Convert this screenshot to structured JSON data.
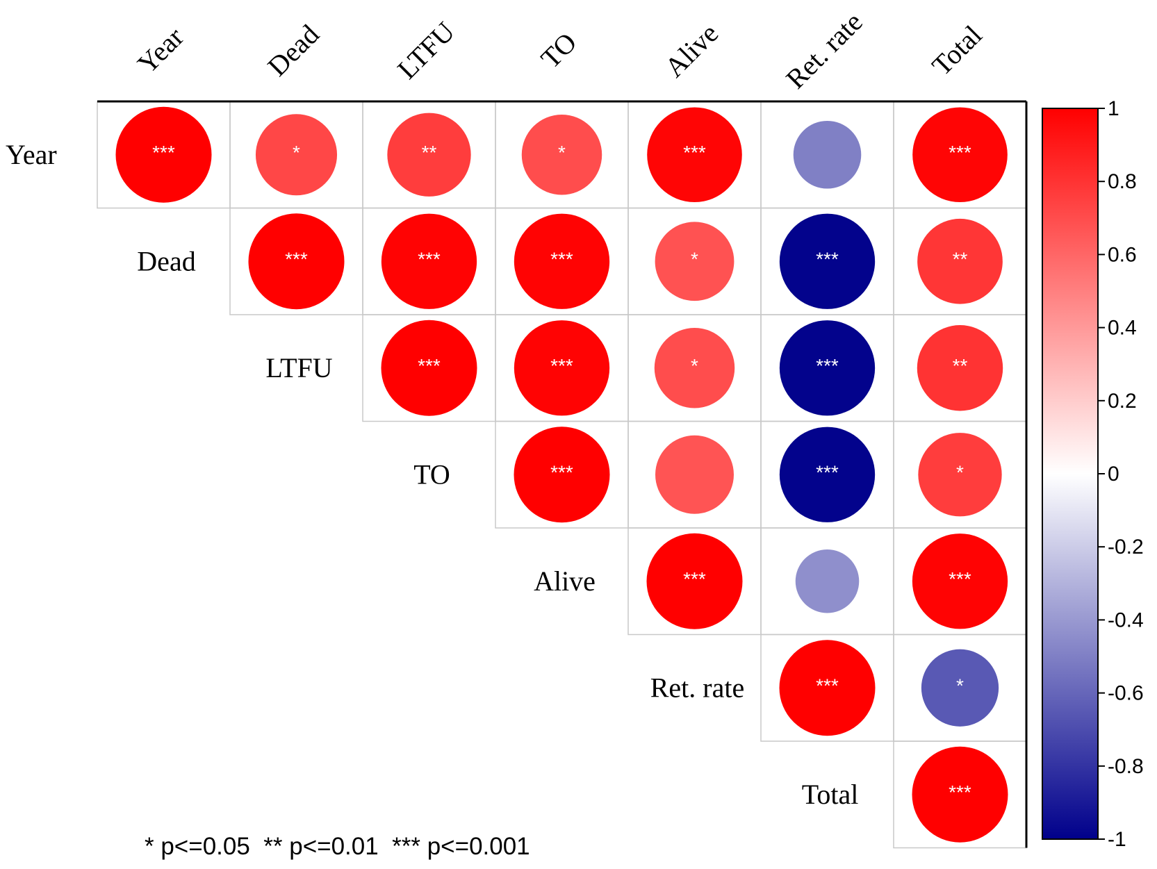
{
  "chart_data": {
    "type": "heatmap",
    "subtype": "correlation-circle-upper-triangle",
    "variables": [
      "Year",
      "Dead",
      "LTFU",
      "TO",
      "Alive",
      "Ret. rate",
      "Total"
    ],
    "cells": [
      {
        "row": "Year",
        "col": "Year",
        "r": 1.0,
        "sig": "***"
      },
      {
        "row": "Year",
        "col": "Dead",
        "r": 0.72,
        "sig": "*"
      },
      {
        "row": "Year",
        "col": "LTFU",
        "r": 0.76,
        "sig": "**"
      },
      {
        "row": "Year",
        "col": "TO",
        "r": 0.7,
        "sig": "*"
      },
      {
        "row": "Year",
        "col": "Alive",
        "r": 0.98,
        "sig": "***"
      },
      {
        "row": "Year",
        "col": "Ret. rate",
        "r": -0.5,
        "sig": ""
      },
      {
        "row": "Year",
        "col": "Total",
        "r": 0.98,
        "sig": "***"
      },
      {
        "row": "Dead",
        "col": "Dead",
        "r": 1.0,
        "sig": "***"
      },
      {
        "row": "Dead",
        "col": "LTFU",
        "r": 0.99,
        "sig": "***"
      },
      {
        "row": "Dead",
        "col": "TO",
        "r": 0.99,
        "sig": "***"
      },
      {
        "row": "Dead",
        "col": "Alive",
        "r": 0.68,
        "sig": "*"
      },
      {
        "row": "Dead",
        "col": "Ret. rate",
        "r": -0.99,
        "sig": "***"
      },
      {
        "row": "Dead",
        "col": "Total",
        "r": 0.79,
        "sig": "**"
      },
      {
        "row": "LTFU",
        "col": "LTFU",
        "r": 1.0,
        "sig": "***"
      },
      {
        "row": "LTFU",
        "col": "TO",
        "r": 0.99,
        "sig": "***"
      },
      {
        "row": "LTFU",
        "col": "Alive",
        "r": 0.7,
        "sig": "*"
      },
      {
        "row": "LTFU",
        "col": "Ret. rate",
        "r": -0.99,
        "sig": "***"
      },
      {
        "row": "LTFU",
        "col": "Total",
        "r": 0.8,
        "sig": "**"
      },
      {
        "row": "TO",
        "col": "TO",
        "r": 1.0,
        "sig": "***"
      },
      {
        "row": "TO",
        "col": "Alive",
        "r": 0.67,
        "sig": ""
      },
      {
        "row": "TO",
        "col": "Ret. rate",
        "r": -0.99,
        "sig": "***"
      },
      {
        "row": "TO",
        "col": "Total",
        "r": 0.76,
        "sig": "*"
      },
      {
        "row": "Alive",
        "col": "Alive",
        "r": 1.0,
        "sig": "***"
      },
      {
        "row": "Alive",
        "col": "Ret. rate",
        "r": -0.44,
        "sig": ""
      },
      {
        "row": "Alive",
        "col": "Total",
        "r": 0.99,
        "sig": "***"
      },
      {
        "row": "Ret. rate",
        "col": "Ret. rate",
        "r": 1.0,
        "sig": "***"
      },
      {
        "row": "Ret. rate",
        "col": "Total",
        "r": -0.65,
        "sig": "*"
      },
      {
        "row": "Total",
        "col": "Total",
        "r": 1.0,
        "sig": "***"
      }
    ],
    "color_scale": {
      "min": -1,
      "max": 1,
      "low_color": "#00008b",
      "mid_color": "#ffffff",
      "high_color": "#ff0000",
      "ticks": [
        "1",
        "0.8",
        "0.6",
        "0.4",
        "0.2",
        "0",
        "-0.2",
        "-0.4",
        "-0.6",
        "-0.8",
        "-1"
      ]
    },
    "legend_note": "* p<=0.05  ** p<=0.01  *** p<=0.001"
  }
}
